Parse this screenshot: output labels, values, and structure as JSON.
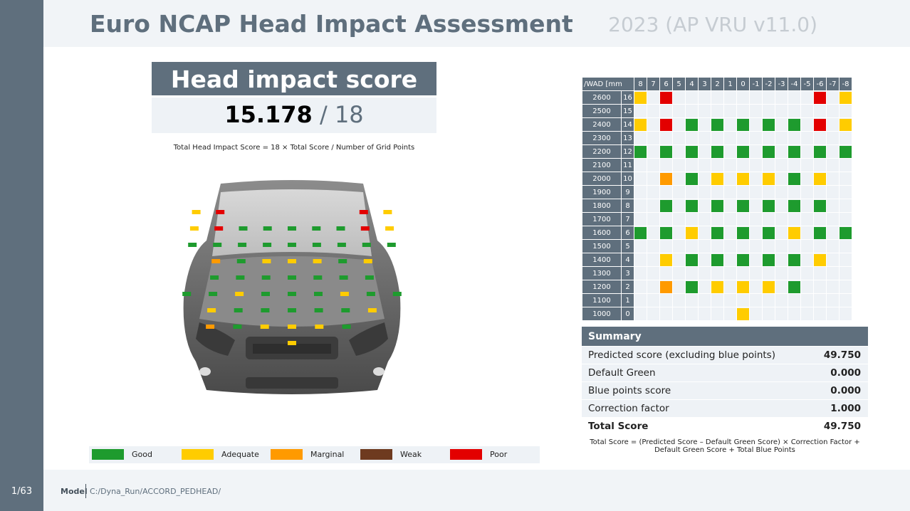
{
  "header": {
    "title": "Euro NCAP Head Impact Assessment",
    "subtitle": "2023 (AP VRU v11.0)"
  },
  "score": {
    "title": "Head impact score",
    "value": "15.178",
    "max_text": "/ 18"
  },
  "formula_top": "Total Head Impact Score = 18 × Total Score / Number of Grid Points",
  "legend": [
    {
      "label": "Good",
      "color": "#1e9b2e"
    },
    {
      "label": "Adequate",
      "color": "#ffcc00"
    },
    {
      "label": "Marginal",
      "color": "#ff9a00"
    },
    {
      "label": "Weak",
      "color": "#6e3a1f"
    },
    {
      "label": "Poor",
      "color": "#e30000"
    }
  ],
  "grid": {
    "corner_label": "/WAD [mm",
    "columns": [
      "8",
      "7",
      "6",
      "5",
      "4",
      "3",
      "2",
      "1",
      "0",
      "-1",
      "-2",
      "-3",
      "-4",
      "-5",
      "-6",
      "-7",
      "-8"
    ],
    "rows": [
      {
        "wad": "2600",
        "idx": "16",
        "cells": [
          "Y",
          "",
          "R",
          "",
          "",
          "",
          "",
          "",
          "",
          "",
          "",
          "",
          "",
          "",
          "R",
          "",
          "Y"
        ]
      },
      {
        "wad": "2500",
        "idx": "15",
        "cells": [
          "",
          "",
          "",
          "",
          "",
          "",
          "",
          "",
          "",
          "",
          "",
          "",
          "",
          "",
          "",
          "",
          ""
        ]
      },
      {
        "wad": "2400",
        "idx": "14",
        "cells": [
          "Y",
          "",
          "R",
          "",
          "G",
          "",
          "G",
          "",
          "G",
          "",
          "G",
          "",
          "G",
          "",
          "R",
          "",
          "Y"
        ]
      },
      {
        "wad": "2300",
        "idx": "13",
        "cells": [
          "",
          "",
          "",
          "",
          "",
          "",
          "",
          "",
          "",
          "",
          "",
          "",
          "",
          "",
          "",
          "",
          ""
        ]
      },
      {
        "wad": "2200",
        "idx": "12",
        "cells": [
          "G",
          "",
          "G",
          "",
          "G",
          "",
          "G",
          "",
          "G",
          "",
          "G",
          "",
          "G",
          "",
          "G",
          "",
          "G"
        ]
      },
      {
        "wad": "2100",
        "idx": "11",
        "cells": [
          "",
          "",
          "",
          "",
          "",
          "",
          "",
          "",
          "",
          "",
          "",
          "",
          "",
          "",
          "",
          "",
          ""
        ]
      },
      {
        "wad": "2000",
        "idx": "10",
        "cells": [
          "",
          "",
          "O",
          "",
          "G",
          "",
          "Y",
          "",
          "Y",
          "",
          "Y",
          "",
          "G",
          "",
          "Y",
          "",
          ""
        ]
      },
      {
        "wad": "1900",
        "idx": "9",
        "cells": [
          "",
          "",
          "",
          "",
          "",
          "",
          "",
          "",
          "",
          "",
          "",
          "",
          "",
          "",
          "",
          "",
          ""
        ]
      },
      {
        "wad": "1800",
        "idx": "8",
        "cells": [
          "",
          "",
          "G",
          "",
          "G",
          "",
          "G",
          "",
          "G",
          "",
          "G",
          "",
          "G",
          "",
          "G",
          "",
          ""
        ]
      },
      {
        "wad": "1700",
        "idx": "7",
        "cells": [
          "",
          "",
          "",
          "",
          "",
          "",
          "",
          "",
          "",
          "",
          "",
          "",
          "",
          "",
          "",
          "",
          ""
        ]
      },
      {
        "wad": "1600",
        "idx": "6",
        "cells": [
          "G",
          "",
          "G",
          "",
          "Y",
          "",
          "G",
          "",
          "G",
          "",
          "G",
          "",
          "Y",
          "",
          "G",
          "",
          "G"
        ]
      },
      {
        "wad": "1500",
        "idx": "5",
        "cells": [
          "",
          "",
          "",
          "",
          "",
          "",
          "",
          "",
          "",
          "",
          "",
          "",
          "",
          "",
          "",
          "",
          ""
        ]
      },
      {
        "wad": "1400",
        "idx": "4",
        "cells": [
          "",
          "",
          "Y",
          "",
          "G",
          "",
          "G",
          "",
          "G",
          "",
          "G",
          "",
          "G",
          "",
          "Y",
          "",
          ""
        ]
      },
      {
        "wad": "1300",
        "idx": "3",
        "cells": [
          "",
          "",
          "",
          "",
          "",
          "",
          "",
          "",
          "",
          "",
          "",
          "",
          "",
          "",
          "",
          "",
          ""
        ]
      },
      {
        "wad": "1200",
        "idx": "2",
        "cells": [
          "",
          "",
          "O",
          "",
          "G",
          "",
          "Y",
          "",
          "Y",
          "",
          "Y",
          "",
          "G",
          "",
          "",
          "",
          ""
        ]
      },
      {
        "wad": "1100",
        "idx": "1",
        "cells": [
          "",
          "",
          "",
          "",
          "",
          "",
          "",
          "",
          "",
          "",
          "",
          "",
          "",
          "",
          "",
          "",
          ""
        ]
      },
      {
        "wad": "1000",
        "idx": "0",
        "cells": [
          "",
          "",
          "",
          "",
          "",
          "",
          "",
          "",
          "Y",
          "",
          "",
          "",
          "",
          "",
          "",
          "",
          ""
        ]
      }
    ]
  },
  "summary": {
    "title": "Summary",
    "rows": [
      {
        "label": "Predicted score (excluding blue points)",
        "value": "49.750"
      },
      {
        "label": "Default Green",
        "value": "0.000"
      },
      {
        "label": "Blue points score",
        "value": "0.000"
      },
      {
        "label": "Correction factor",
        "value": "1.000"
      },
      {
        "label": "Total Score",
        "value": "49.750"
      }
    ]
  },
  "formula_bottom": "Total Score = (Predicted Score – Default Green Score) × Correction Factor + Default Green Score + Total Blue Points",
  "footer": {
    "model_label": "Model",
    "model_path": "C:/Dyna_Run/ACCORD_PEDHEAD/",
    "page": "1/63"
  }
}
